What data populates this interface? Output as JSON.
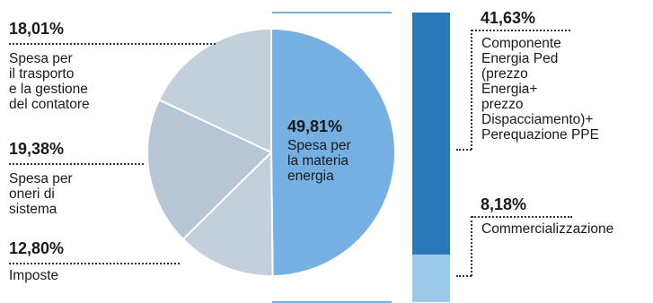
{
  "chart_data": {
    "type": "pie",
    "slices": [
      {
        "label": "Spesa per la materia energia",
        "value": 49.81,
        "display": "49,81%",
        "color": "#76afe1"
      },
      {
        "label": "Imposte",
        "value": 12.8,
        "display": "12,80%",
        "color": "#c3cfdb"
      },
      {
        "label": "Spesa per oneri di sistema",
        "value": 19.38,
        "display": "19,38%",
        "color": "#b7c6d4"
      },
      {
        "label": "Spesa per il trasporto e la gestione del contatore",
        "value": 18.01,
        "display": "18,01%",
        "color": "#c3cfdb"
      }
    ],
    "breakdown": {
      "of": "Spesa per la materia energia",
      "segments": [
        {
          "label": "Componente Energia Ped (prezzo Energia+ prezzo Dispacciamento)+ Perequazione PPE",
          "value": 41.63,
          "display": "41,63%",
          "color": "#2a78bb"
        },
        {
          "label": "Commercializzazione",
          "value": 8.18,
          "display": "8,18%",
          "color": "#9ac9ea"
        }
      ]
    }
  },
  "labels": {
    "trasporto": {
      "pct": "18,01%",
      "lines": [
        "Spesa per",
        "il trasporto",
        "e la gestione",
        "del contatore"
      ]
    },
    "oneri": {
      "pct": "19,38%",
      "lines": [
        "Spesa per",
        "oneri di",
        "sistema"
      ]
    },
    "imposte": {
      "pct": "12,80%",
      "lines": [
        "Imposte"
      ]
    },
    "materia": {
      "pct": "49,81%",
      "lines": [
        "Spesa per",
        "la materia",
        "energia"
      ]
    },
    "componente": {
      "pct": "41,63%",
      "lines": [
        "Componente",
        "Energia Ped",
        "(prezzo",
        "Energia+",
        "prezzo",
        "Dispacciamento)+",
        "Perequazione PPE"
      ]
    },
    "commercializzazione": {
      "pct": "8,18%",
      "lines": [
        "Commercializzazione"
      ]
    }
  }
}
